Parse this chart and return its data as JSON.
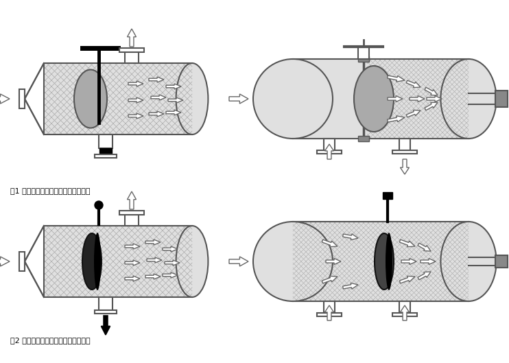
{
  "fig_width": 7.42,
  "fig_height": 5.29,
  "dpi": 100,
  "bg_color": "#ffffff",
  "label1": "图1 正常过滤状态（水流导向阀开启）",
  "label2": "图2 反洗排污状态（水流导向阀关闭）",
  "label_fontsize": 8.0,
  "body_fill": "#e0e0e0",
  "body_lc": "#555555",
  "hatch_lc": "#999999",
  "white_fill": "#ffffff",
  "gray_disk": "#aaaaaa",
  "dark_elem": "#222222",
  "black": "#000000",
  "lw_main": 1.5,
  "lw_hatch": 0.4,
  "arrow_lw": 1.2,
  "arrow_ms": 14
}
